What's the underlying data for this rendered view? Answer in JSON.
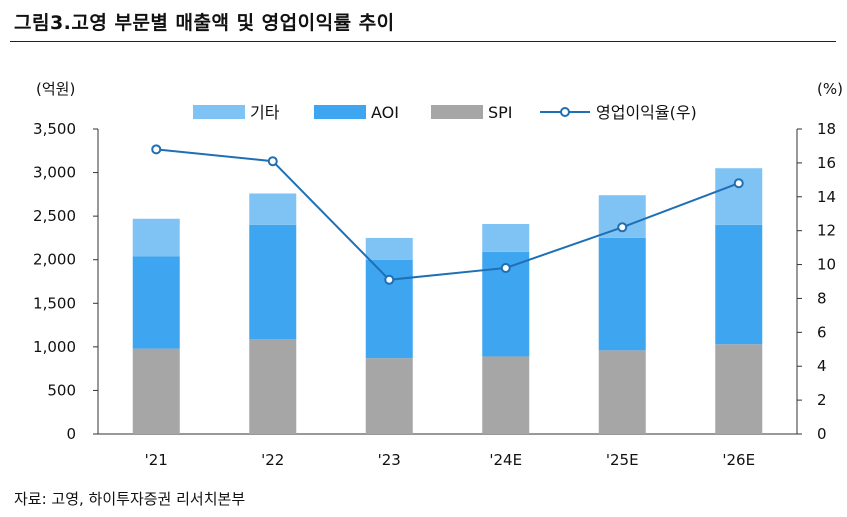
{
  "title": "그림3.고영 부문별 매출액 및 영업이익률 추이",
  "source": "자료: 고영, 하이투자증권 리서치본부",
  "chart_data": {
    "type": "bar",
    "stacked": true,
    "categories": [
      "'21",
      "'22",
      "'23",
      "'24E",
      "'25E",
      "'26E"
    ],
    "series": [
      {
        "name": "SPI",
        "color": "#a6a6a6",
        "values": [
          980,
          1090,
          870,
          890,
          960,
          1030
        ]
      },
      {
        "name": "AOI",
        "color": "#3ea5f0",
        "values": [
          1060,
          1310,
          1130,
          1200,
          1290,
          1370
        ]
      },
      {
        "name": "기타",
        "color": "#7ec3f4",
        "values": [
          430,
          360,
          250,
          320,
          490,
          650
        ]
      }
    ],
    "line": {
      "name": "영업이익율(우)",
      "color": "#1f6fb4",
      "values": [
        16.8,
        16.1,
        9.1,
        9.8,
        12.2,
        14.8
      ]
    },
    "legend_order": [
      "기타",
      "AOI",
      "SPI",
      "영업이익율(우)"
    ],
    "ylabel_left": "(억원)",
    "ylabel_right": "(%)",
    "ylim_left": [
      0,
      3500
    ],
    "ylim_right": [
      0,
      18
    ],
    "yticks_left": [
      "0",
      "500",
      "1,000",
      "1,500",
      "2,000",
      "2,500",
      "3,000",
      "3,500"
    ],
    "yticks_right": [
      "0",
      "2",
      "4",
      "6",
      "8",
      "10",
      "12",
      "14",
      "16",
      "18"
    ]
  }
}
